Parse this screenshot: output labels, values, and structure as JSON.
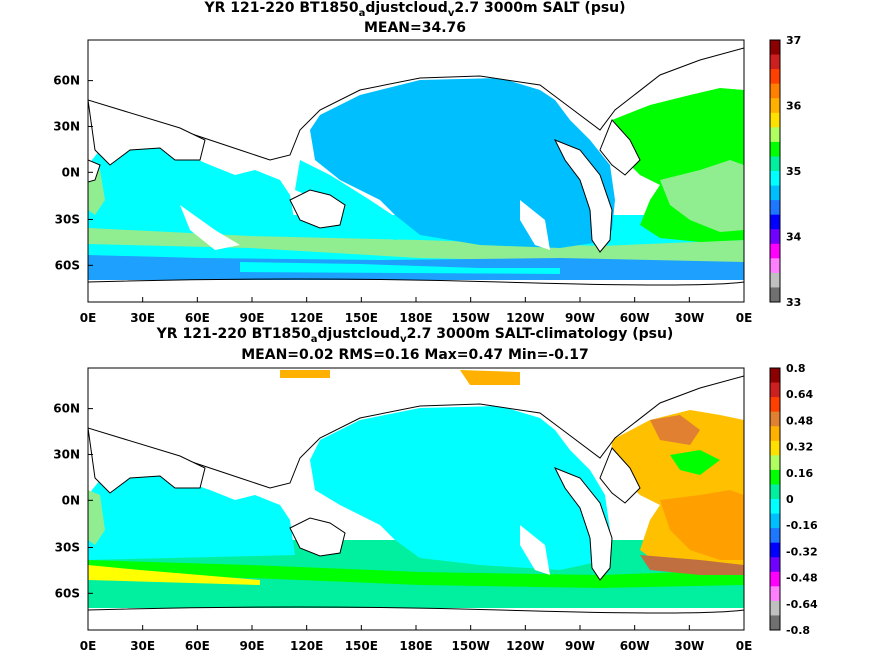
{
  "panels": [
    {
      "title": {
        "part1": "YR 121-220 BT1850",
        "sub1": "a",
        "part2": "djustcloud",
        "sub2": "v",
        "part3": "2.7 3000m SALT (psu)"
      },
      "stats": "MEAN=34.76",
      "colorbar": {
        "ticks": [
          "37",
          "36",
          "35",
          "34",
          "33"
        ],
        "colors": [
          "#8b0000",
          "#cc2020",
          "#ff4000",
          "#ff8000",
          "#ffb000",
          "#ffe000",
          "#b0ff60",
          "#00ff00",
          "#00f0a0",
          "#00ffff",
          "#00bfff",
          "#1e78ff",
          "#0000ff",
          "#7000ff",
          "#ff00ff",
          "#ff80ff",
          "#c0c0c0",
          "#707070"
        ]
      }
    },
    {
      "title": {
        "part1": "YR 121-220 BT1850",
        "sub1": "a",
        "part2": "djustcloud",
        "sub2": "v",
        "part3": "2.7 3000m SALT-climatology (psu)"
      },
      "stats": "MEAN=0.02   RMS=0.16   Max=0.47   Min=-0.17",
      "colorbar": {
        "ticks": [
          "0.8",
          "0.64",
          "0.48",
          "0.32",
          "0.16",
          "0",
          "-0.16",
          "-0.32",
          "-0.48",
          "-0.64",
          "-0.8"
        ],
        "colors": [
          "#8b0000",
          "#cc2020",
          "#ff4000",
          "#e08030",
          "#ffb000",
          "#ffe000",
          "#b0ff60",
          "#00ff00",
          "#00f0a0",
          "#00ffff",
          "#00bfff",
          "#1e78ff",
          "#0000ff",
          "#7000ff",
          "#ff00ff",
          "#ff80ff",
          "#c0c0c0",
          "#707070"
        ]
      }
    }
  ],
  "axes": {
    "lat_labels": [
      "60N",
      "30N",
      "0N",
      "30S",
      "60S"
    ],
    "lon_labels": [
      "0E",
      "30E",
      "60E",
      "90E",
      "120E",
      "150E",
      "180E",
      "150W",
      "120W",
      "90W",
      "60W",
      "30W",
      "0E"
    ]
  }
}
